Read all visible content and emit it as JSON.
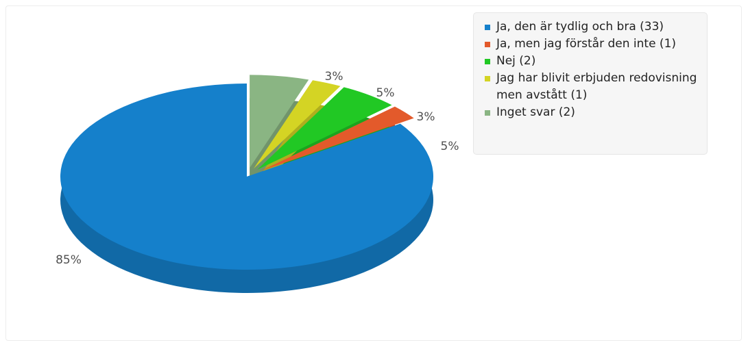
{
  "chart_data": {
    "type": "pie",
    "title": "",
    "slices": [
      {
        "label": "Ja, den är tydlig och bra (33)",
        "value": 33,
        "percent_label": "85%",
        "color": "#1580cb"
      },
      {
        "label": "Ja, men jag förstår den inte (1)",
        "value": 1,
        "percent_label": "3%",
        "color": "#e35a2b"
      },
      {
        "label": "Nej (2)",
        "value": 2,
        "percent_label": "5%",
        "color": "#21c824"
      },
      {
        "label": "Jag har blivit erbjuden redovisning men avstått (1)",
        "value": 1,
        "percent_label": "3%",
        "color": "#d4d424"
      },
      {
        "label": "Inget svar (2)",
        "value": 2,
        "percent_label": "5%",
        "color": "#8ab583"
      }
    ],
    "legend_position": "top-right"
  }
}
